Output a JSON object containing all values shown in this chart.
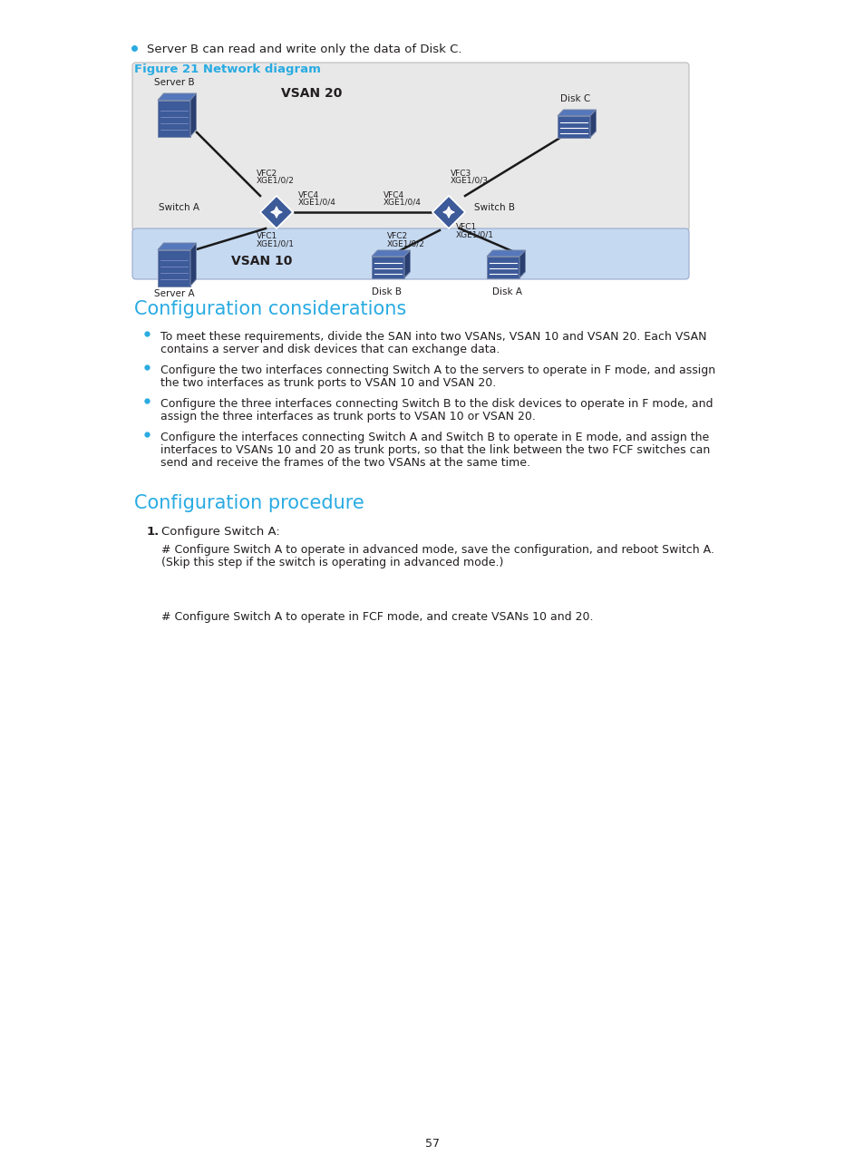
{
  "page_bg": "#ffffff",
  "cyan_color": "#29abe2",
  "text_color": "#231f20",
  "vsan20_bg": "#e8e8e8",
  "vsan10_bg": "#c5d9f1",
  "line_color": "#1a1a1a",
  "device_color": "#3d5a99",
  "device_top": "#5577bb",
  "device_side": "#2a3f70",
  "bullet_intro": "Server B can read and write only the data of Disk C.",
  "fig_caption": "Figure 21 Network diagram",
  "config_considerations_title": "Configuration considerations",
  "config_considerations_bullets": [
    "To meet these requirements, divide the SAN into two VSANs, VSAN 10 and VSAN 20. Each VSAN\ncontains a server and disk devices that can exchange data.",
    "Configure the two interfaces connecting Switch A to the servers to operate in F mode, and assign\nthe two interfaces as trunk ports to VSAN 10 and VSAN 20.",
    "Configure the three interfaces connecting Switch B to the disk devices to operate in F mode, and\nassign the three interfaces as trunk ports to VSAN 10 or VSAN 20.",
    "Configure the interfaces connecting Switch A and Switch B to operate in E mode, and assign the\ninterfaces to VSANs 10 and 20 as trunk ports, so that the link between the two FCF switches can\nsend and receive the frames of the two VSANs at the same time."
  ],
  "config_procedure_title": "Configuration procedure",
  "config_procedure_item1": "Configure Switch A:",
  "config_procedure_text1a": "# Configure Switch A to operate in advanced mode, save the configuration, and reboot Switch A.",
  "config_procedure_text1b": "(Skip this step if the switch is operating in advanced mode.)",
  "config_procedure_text2": "# Configure Switch A to operate in FCF mode, and create VSANs 10 and 20.",
  "page_number": "57"
}
